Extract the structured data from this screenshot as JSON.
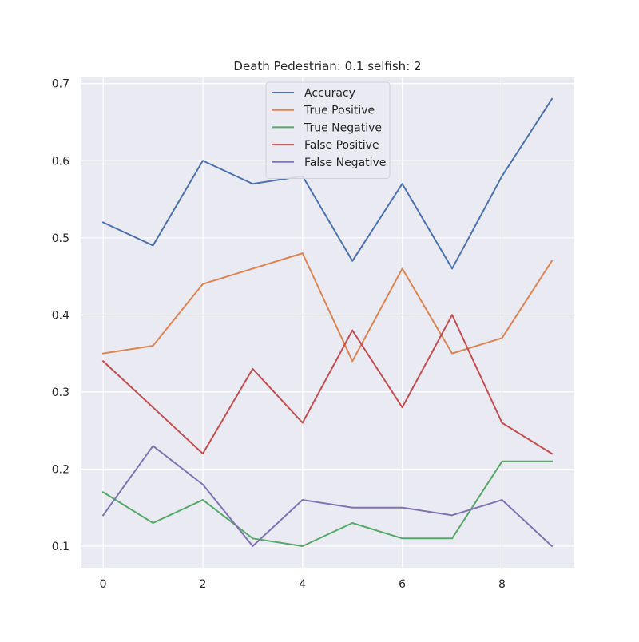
{
  "chart_data": {
    "type": "line",
    "title": "Death Pedestrian: 0.1 selfish: 2",
    "xlabel": "",
    "ylabel": "",
    "x": [
      0,
      1,
      2,
      3,
      4,
      5,
      6,
      7,
      8,
      9
    ],
    "xlim": [
      -0.45,
      9.45
    ],
    "ylim": [
      0.072,
      0.708
    ],
    "x_ticks": [
      0,
      2,
      4,
      6,
      8
    ],
    "y_ticks": [
      0.1,
      0.2,
      0.3,
      0.4,
      0.5,
      0.6,
      0.7
    ],
    "grid": true,
    "legend_position": "top-center",
    "style": {
      "plot_background": "#eaeaf2",
      "grid_color": "#ffffff"
    },
    "series": [
      {
        "name": "Accuracy",
        "color": "#4c72b0",
        "values": [
          0.52,
          0.49,
          0.6,
          0.57,
          0.58,
          0.47,
          0.57,
          0.46,
          0.58,
          0.68
        ]
      },
      {
        "name": "True Positive",
        "color": "#dd8452",
        "values": [
          0.35,
          0.36,
          0.44,
          0.46,
          0.48,
          0.34,
          0.46,
          0.35,
          0.37,
          0.47
        ]
      },
      {
        "name": "True Negative",
        "color": "#55a868",
        "values": [
          0.17,
          0.13,
          0.16,
          0.11,
          0.1,
          0.13,
          0.11,
          0.11,
          0.21,
          0.21
        ]
      },
      {
        "name": "False Positive",
        "color": "#c44e52",
        "values": [
          0.34,
          0.28,
          0.22,
          0.33,
          0.26,
          0.38,
          0.28,
          0.4,
          0.26,
          0.22
        ]
      },
      {
        "name": "False Negative",
        "color": "#8172b3",
        "values": [
          0.14,
          0.23,
          0.18,
          0.1,
          0.16,
          0.15,
          0.15,
          0.14,
          0.16,
          0.1
        ]
      }
    ]
  }
}
